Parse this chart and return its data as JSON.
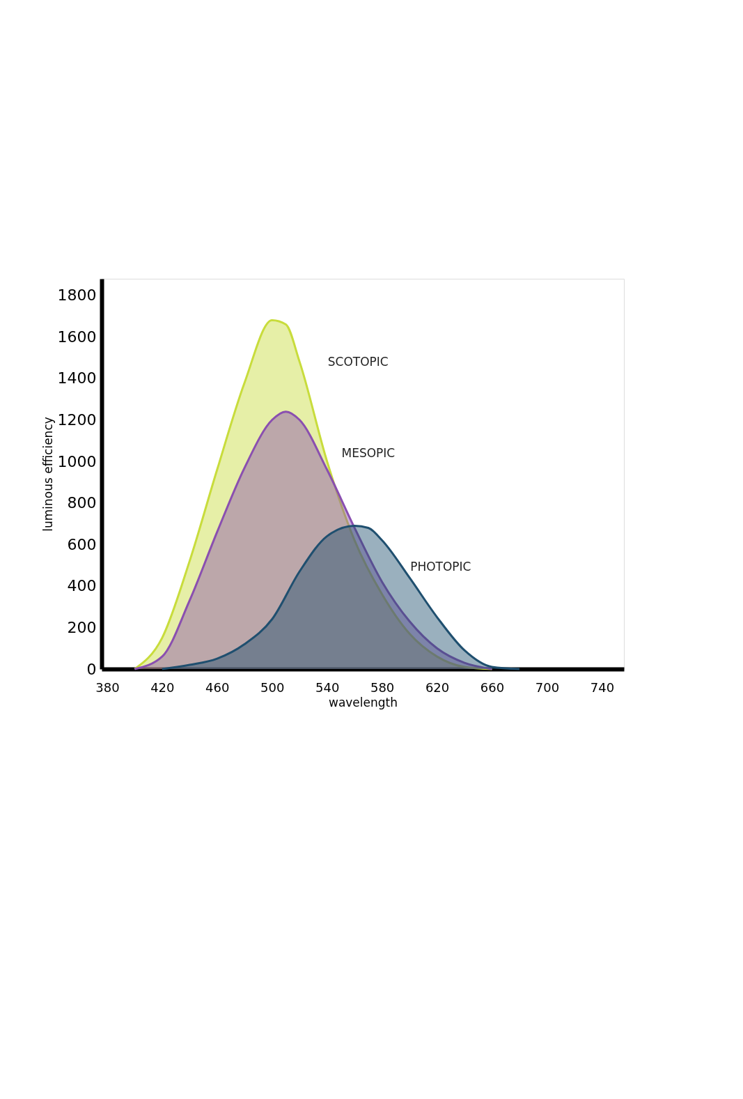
{
  "chart_data": {
    "type": "area",
    "xlabel": "wavelength",
    "ylabel": "luminous efficiency",
    "xlim": [
      376,
      756
    ],
    "xticks": [
      380,
      420,
      460,
      500,
      540,
      580,
      620,
      660,
      700,
      740
    ],
    "ylim": [
      0,
      1880
    ],
    "yticks": [
      0,
      200,
      400,
      600,
      800,
      1000,
      1200,
      1400,
      1600,
      1800
    ],
    "grid": false,
    "series": [
      {
        "name": "SCOTOPIC",
        "color": "#c8dc3c",
        "x": [
          400,
          420,
          440,
          460,
          480,
          500,
          510,
          520,
          540,
          560,
          580,
          600,
          620,
          640,
          660
        ],
        "values": [
          0,
          150,
          520,
          960,
          1380,
          1680,
          1660,
          1480,
          1000,
          620,
          360,
          170,
          60,
          10,
          0
        ]
      },
      {
        "name": "MESOPIC",
        "color": "#8a4fb0",
        "x": [
          400,
          420,
          440,
          460,
          480,
          500,
          510,
          520,
          540,
          560,
          580,
          600,
          620,
          640,
          660
        ],
        "values": [
          0,
          60,
          330,
          660,
          970,
          1200,
          1240,
          1200,
          960,
          680,
          420,
          230,
          100,
          30,
          0
        ]
      },
      {
        "name": "PHOTOPIC",
        "color": "#1f4f6f",
        "x": [
          420,
          440,
          460,
          480,
          500,
          520,
          540,
          560,
          570,
          580,
          600,
          620,
          640,
          660,
          680
        ],
        "values": [
          0,
          20,
          50,
          120,
          240,
          470,
          640,
          690,
          680,
          620,
          440,
          250,
          90,
          10,
          0
        ]
      }
    ]
  }
}
